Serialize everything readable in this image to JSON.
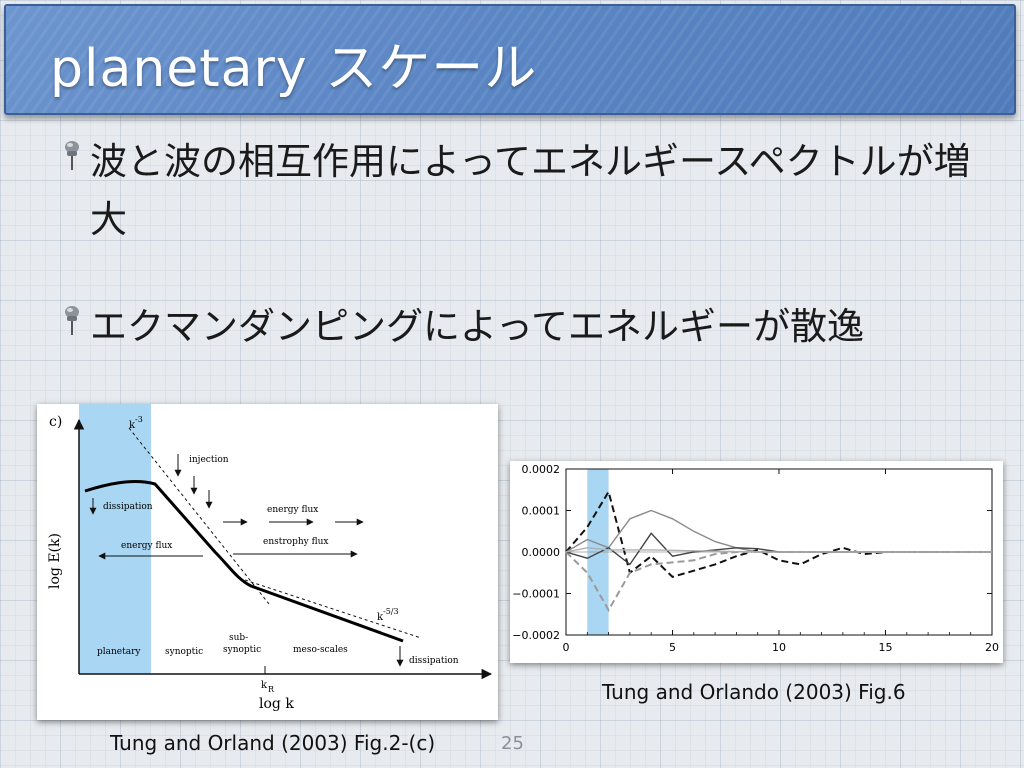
{
  "slide": {
    "title": "planetary スケール",
    "bullets": [
      "波と波の相互作用によってエネルギースペクトルが増大",
      "エクマンダンピングによってエネルギーが散逸"
    ],
    "page_number": "25"
  },
  "left_figure": {
    "panel_label": "c)",
    "ylabel": "log E(k)",
    "xlabel": "log k",
    "k_minus3": "k",
    "k_minus3_exp": "-3",
    "k_minus53": "k",
    "k_minus53_exp": "-5/3",
    "kR": "k",
    "kR_sub": "R",
    "injection": "injection",
    "dissipation_top": "dissipation",
    "energy_flux_right": "energy flux",
    "energy_flux_left": "energy flux",
    "enstrophy_flux": "enstrophy flux",
    "dissipation_bottom": "dissipation",
    "regions": [
      "planetary",
      "synoptic",
      "sub-",
      "synoptic",
      "meso-scales"
    ],
    "caption": "Tung and Orland (2003) Fig.2-(c)"
  },
  "right_figure": {
    "caption": "Tung and Orlando (2003) Fig.6",
    "highlight_color": "#a9d6f2"
  },
  "chart_data": {
    "type": "line",
    "x": [
      0,
      1,
      2,
      3,
      4,
      5,
      6,
      7,
      8,
      9,
      10,
      11,
      12,
      13,
      14,
      15,
      16,
      17,
      18,
      19,
      20
    ],
    "xlim": [
      0,
      20
    ],
    "ylim": [
      -0.0002,
      0.0002
    ],
    "xticks": [
      "0",
      "5",
      "10",
      "15",
      "20"
    ],
    "yticks": [
      "0.0002",
      "0.0001",
      "0.0000",
      "−0.0001",
      "−0.0002"
    ],
    "highlight_x_range": [
      1,
      2
    ],
    "series": [
      {
        "style": "black-dashed",
        "color": "#111111",
        "values": [
          0,
          6e-05,
          0.000145,
          -5e-05,
          -1e-05,
          -6e-05,
          -4.5e-05,
          -3e-05,
          -1e-05,
          5e-06,
          -2e-05,
          -3e-05,
          -5e-06,
          1e-05,
          -5e-06,
          0,
          0,
          0,
          0,
          0,
          0
        ]
      },
      {
        "style": "grey-solid",
        "color": "#8a8a8a",
        "values": [
          0,
          3e-05,
          1e-05,
          8e-05,
          0.0001,
          8e-05,
          5e-05,
          2.5e-05,
          1e-05,
          0,
          0,
          0,
          0,
          0,
          0,
          0,
          0,
          0,
          0,
          0,
          0
        ]
      },
      {
        "style": "grey-dashed",
        "color": "#9a9a9a",
        "values": [
          0,
          -5e-05,
          -0.00014,
          -5e-05,
          -3e-05,
          -2.5e-05,
          -2e-05,
          -5e-06,
          0,
          0,
          0,
          0,
          0,
          0,
          0,
          0,
          0,
          0,
          0,
          0,
          0
        ]
      },
      {
        "style": "dark-solid",
        "color": "#444444",
        "values": [
          0,
          -1.5e-05,
          1e-05,
          -3e-05,
          4.5e-05,
          -1e-05,
          0,
          5e-06,
          1e-05,
          8e-06,
          0,
          0,
          0,
          0,
          0,
          0,
          0,
          0,
          0,
          0,
          0
        ]
      },
      {
        "style": "light-solid",
        "color": "#b0b0b0",
        "values": [
          0,
          1e-05,
          5e-06,
          5e-06,
          5e-06,
          4e-06,
          3e-06,
          2e-06,
          1e-06,
          0,
          0,
          0,
          0,
          0,
          0,
          0,
          0,
          0,
          0,
          0,
          0
        ]
      }
    ]
  }
}
